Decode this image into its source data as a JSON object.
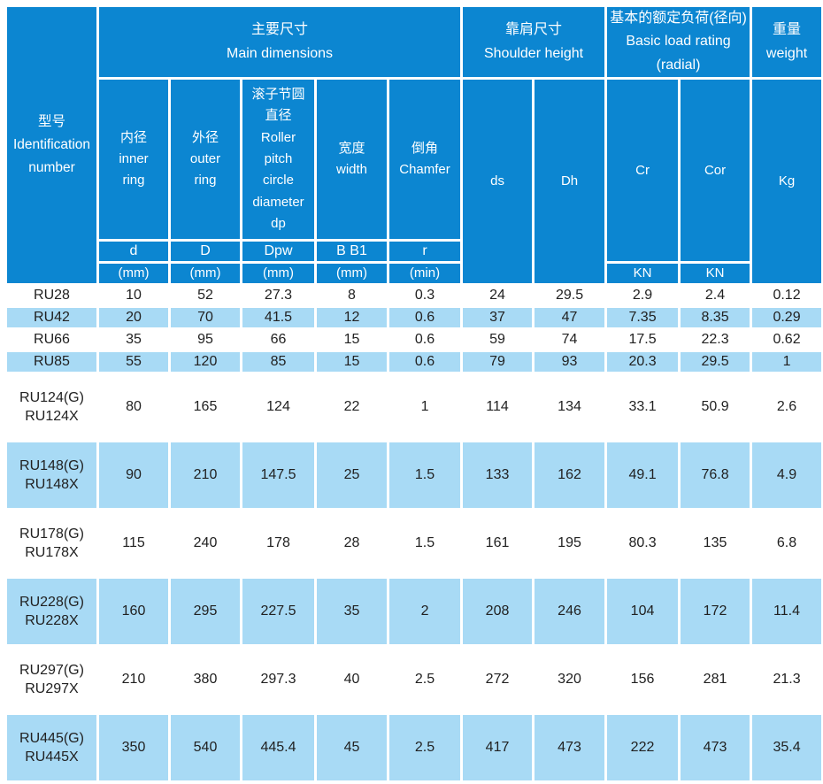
{
  "table": {
    "id_header": "型号\nIdentification number",
    "groups": {
      "main": {
        "zh": "主要尺寸",
        "en": "Main dimensions"
      },
      "shoulder": {
        "zh": "靠肩尺寸",
        "en": "Shoulder height"
      },
      "load": {
        "zh": "基本的额定负荷(径向)",
        "en": "Basic load rating (radial)"
      },
      "weight": {
        "zh": "重量",
        "en": "weight"
      }
    },
    "subcols": {
      "inner": "内径\ninner\nring",
      "outer": "外径\nouter\nring",
      "roller": "滚子节圆\n直径\nRoller\npitch\ncircle\ndiameter\ndp",
      "width": "宽度\nwidth",
      "chamfer": "倒角\nChamfer",
      "ds": "ds",
      "dh": "Dh",
      "cr": "Cr",
      "cor": "Cor",
      "kg": "Kg"
    },
    "symbols": [
      "d",
      "D",
      "Dpw",
      "B B1",
      "r"
    ],
    "units": [
      "(mm)",
      "(mm)",
      "(mm)",
      "(mm)",
      "(min)",
      "KN",
      "KN"
    ],
    "rows": [
      {
        "id": "RU28",
        "values": [
          "10",
          "52",
          "27.3",
          "8",
          "0.3",
          "24",
          "29.5",
          "2.9",
          "2.4",
          "0.12"
        ]
      },
      {
        "id": "RU42",
        "values": [
          "20",
          "70",
          "41.5",
          "12",
          "0.6",
          "37",
          "47",
          "7.35",
          "8.35",
          "0.29"
        ]
      },
      {
        "id": "RU66",
        "values": [
          "35",
          "95",
          "66",
          "15",
          "0.6",
          "59",
          "74",
          "17.5",
          "22.3",
          "0.62"
        ]
      },
      {
        "id": "RU85",
        "values": [
          "55",
          "120",
          "85",
          "15",
          "0.6",
          "79",
          "93",
          "20.3",
          "29.5",
          "1"
        ]
      },
      {
        "id": "RU124(G)\nRU124X",
        "values": [
          "80",
          "165",
          "124",
          "22",
          "1",
          "114",
          "134",
          "33.1",
          "50.9",
          "2.6"
        ]
      },
      {
        "id": "RU148(G)\nRU148X",
        "values": [
          "90",
          "210",
          "147.5",
          "25",
          "1.5",
          "133",
          "162",
          "49.1",
          "76.8",
          "4.9"
        ]
      },
      {
        "id": "RU178(G)\nRU178X",
        "values": [
          "115",
          "240",
          "178",
          "28",
          "1.5",
          "161",
          "195",
          "80.3",
          "135",
          "6.8"
        ]
      },
      {
        "id": "RU228(G)\nRU228X",
        "values": [
          "160",
          "295",
          "227.5",
          "35",
          "2",
          "208",
          "246",
          "104",
          "172",
          "11.4"
        ]
      },
      {
        "id": "RU297(G)\nRU297X",
        "values": [
          "210",
          "380",
          "297.3",
          "40",
          "2.5",
          "272",
          "320",
          "156",
          "281",
          "21.3"
        ]
      },
      {
        "id": "RU445(G)\nRU445X",
        "values": [
          "350",
          "540",
          "445.4",
          "45",
          "2.5",
          "417",
          "473",
          "222",
          "473",
          "35.4"
        ]
      }
    ]
  },
  "colors": {
    "header_blue": "#0c86d1",
    "row_light_blue": "#a8daf5",
    "grid_white": "#ffffff",
    "header_text": "#ffffff",
    "data_text": "#212121"
  }
}
